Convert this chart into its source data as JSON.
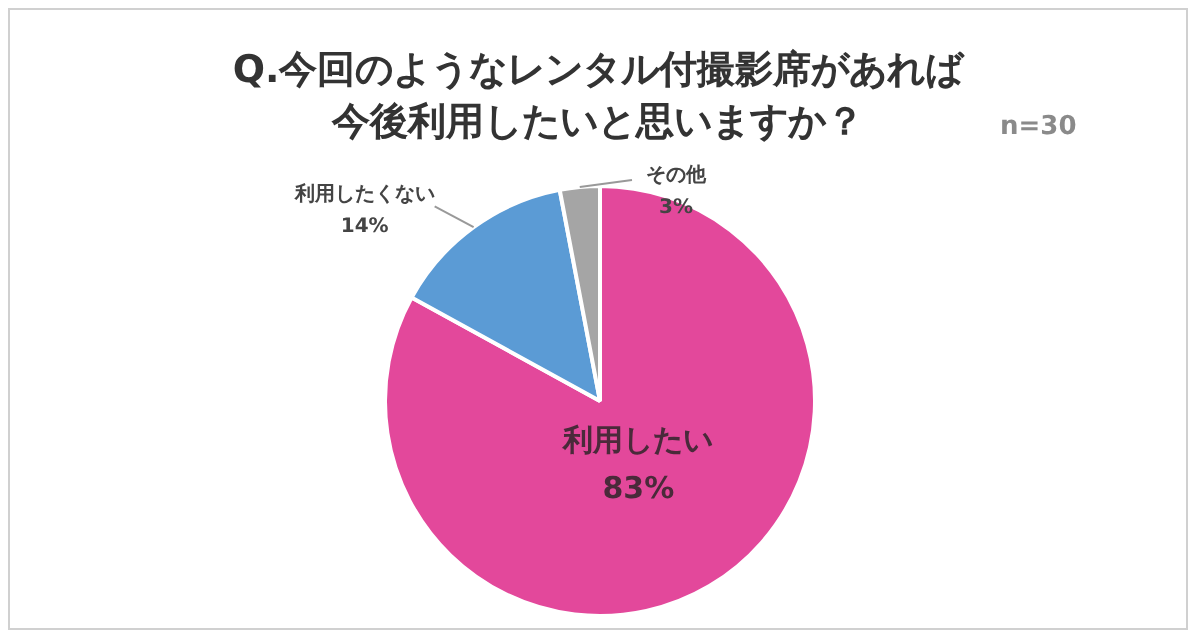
{
  "chart_data": {
    "type": "pie",
    "title": "Q.今回のようなレンタル付撮影席があれば今後利用したいと思いますか？",
    "categories": [
      "利用したい",
      "利用したくない",
      "その他"
    ],
    "values": [
      83,
      14,
      3
    ],
    "value_labels": [
      "83%",
      "14%",
      "3%"
    ],
    "colors": [
      "#e3489b",
      "#5b9bd5",
      "#a5a5a5"
    ],
    "legend": false,
    "annotations": [
      "n=30"
    ]
  }
}
